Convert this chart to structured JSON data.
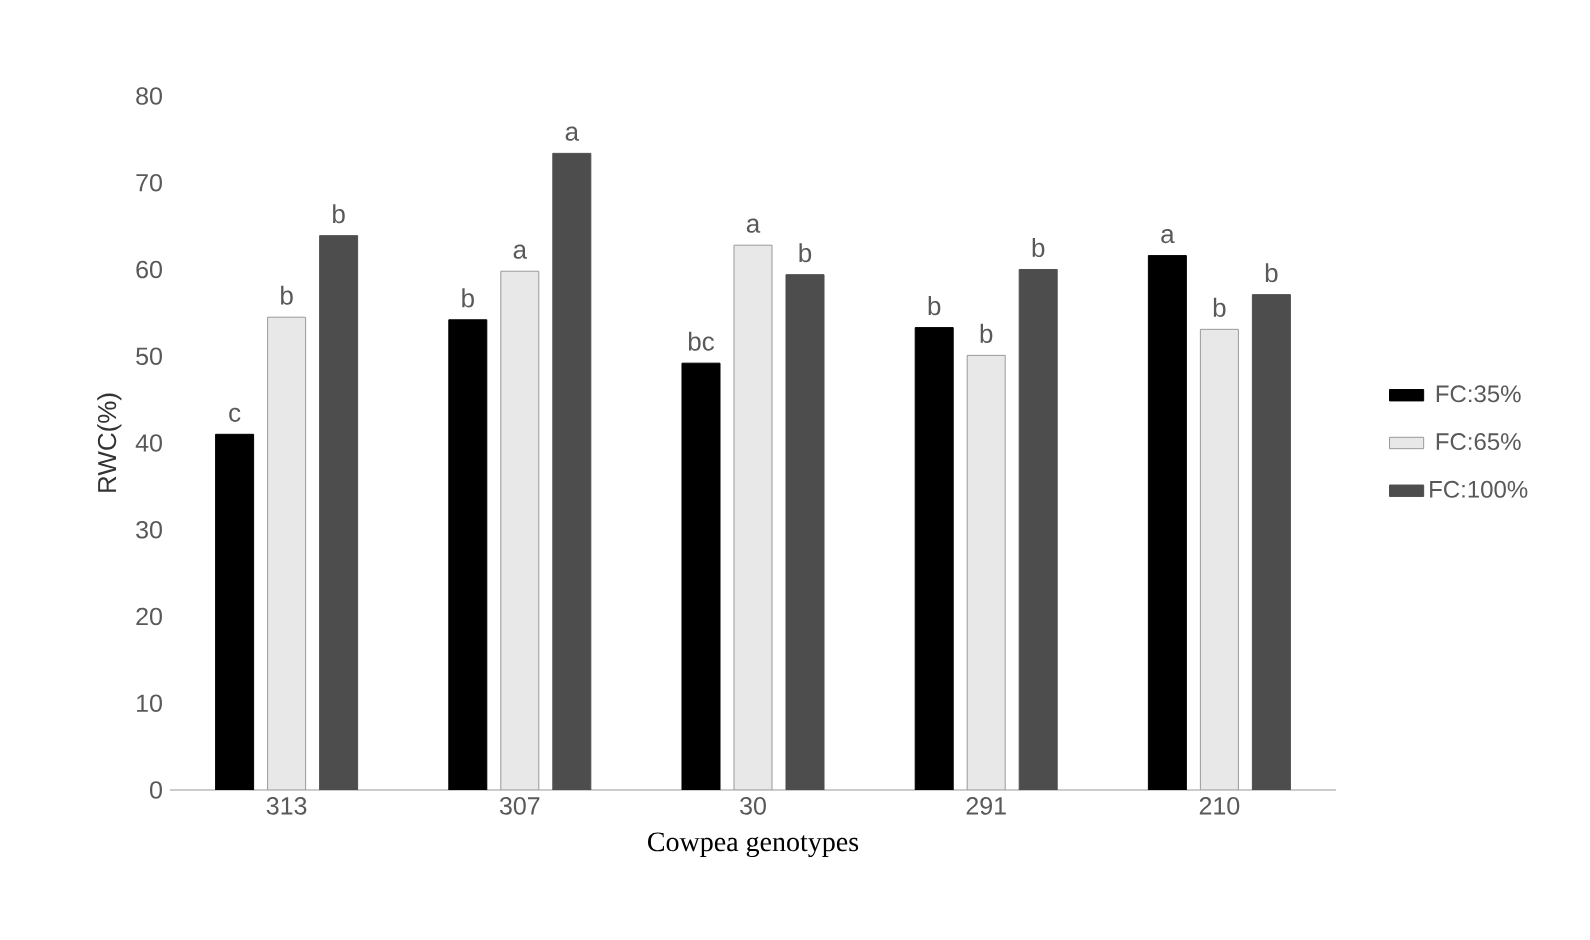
{
  "chart_data": {
    "type": "bar",
    "xlabel": "Cowpea genotypes",
    "ylabel": "RWC(%)",
    "categories": [
      "313",
      "307",
      "30",
      "291",
      "210"
    ],
    "series": [
      {
        "name": "FC:35%",
        "color": "#000000",
        "values": [
          41,
          54.2,
          49.2,
          53.3,
          61.6
        ],
        "value_labels": [
          "c",
          "b",
          "bc",
          "b",
          "a"
        ]
      },
      {
        "name": "FC:65%",
        "color": "#e8e8e8",
        "values": [
          54.5,
          59.8,
          62.8,
          50.1,
          53.1
        ],
        "value_labels": [
          "b",
          "a",
          "a",
          "b",
          "b"
        ]
      },
      {
        "name": "FC:100%",
        "color": "#4d4d4d",
        "values": [
          63.9,
          73.4,
          59.4,
          60,
          57.1
        ],
        "value_labels": [
          "b",
          "a",
          "b",
          "b",
          "b"
        ]
      }
    ],
    "ylim": [
      0,
      80
    ],
    "yticks": [
      0,
      10,
      20,
      30,
      40,
      50,
      60,
      70,
      80
    ],
    "grid": false,
    "legend": "right"
  }
}
